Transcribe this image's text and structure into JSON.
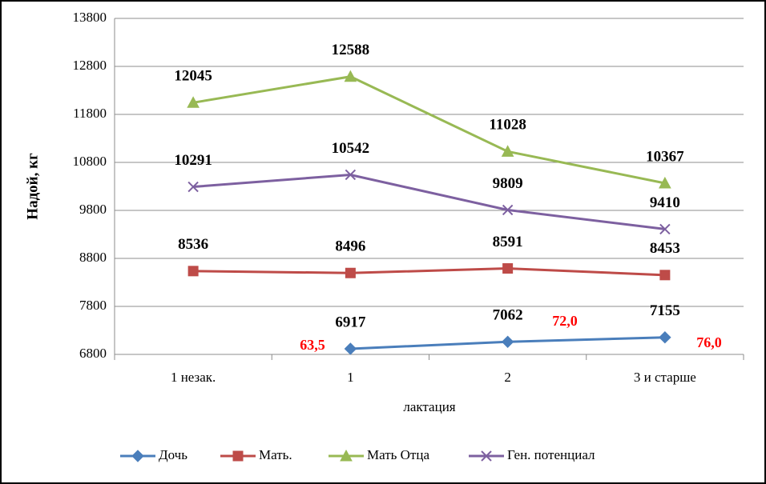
{
  "chart_data": {
    "type": "line",
    "y_label": "Надой, кг",
    "x_label": "лактация",
    "categories": [
      "1 незак.",
      "1",
      "2",
      "3 и старше"
    ],
    "series": [
      {
        "name": "Дочь",
        "color": "#4a7ebb",
        "marker": "diamond",
        "values": [
          null,
          6917,
          7062,
          7155
        ]
      },
      {
        "name": "Мать.",
        "color": "#be4b48",
        "marker": "square",
        "values": [
          8536,
          8496,
          8591,
          8453
        ]
      },
      {
        "name": "Мать Отца",
        "color": "#98b954",
        "marker": "triangle",
        "values": [
          12045,
          12588,
          11028,
          10367
        ]
      },
      {
        "name": "Ген. потенциал",
        "color": "#7d60a0",
        "marker": "x",
        "values": [
          10291,
          10542,
          9809,
          9410
        ]
      }
    ],
    "annotations": [
      "63,5",
      "72,0",
      "76,0"
    ],
    "ylim": [
      6800,
      13800
    ],
    "yticks": [
      6800,
      7800,
      8800,
      9800,
      10800,
      11800,
      12800,
      13800
    ],
    "grid": true,
    "legend": "bottom"
  }
}
